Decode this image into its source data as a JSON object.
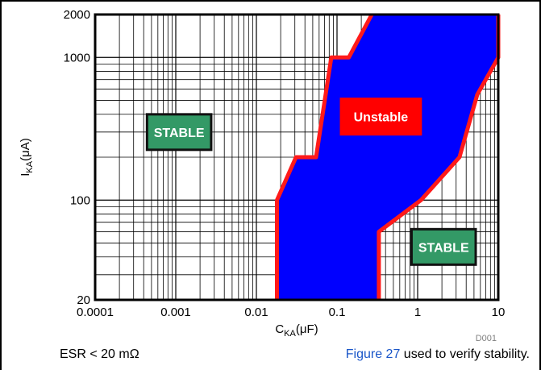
{
  "chart_data": {
    "type": "area",
    "x_scale": "log",
    "y_scale": "log",
    "xlim": [
      0.0001,
      10
    ],
    "ylim": [
      20,
      2000
    ],
    "x_ticks": [
      {
        "value": 0.0001,
        "label": "0.0001"
      },
      {
        "value": 0.001,
        "label": "0.001"
      },
      {
        "value": 0.01,
        "label": "0.01"
      },
      {
        "value": 0.1,
        "label": "0.1"
      },
      {
        "value": 1,
        "label": "1"
      },
      {
        "value": 10,
        "label": "10"
      }
    ],
    "y_ticks": [
      {
        "value": 20,
        "label": "20"
      },
      {
        "value": 100,
        "label": "100"
      },
      {
        "value": 1000,
        "label": "1000"
      },
      {
        "value": 2000,
        "label": "2000"
      }
    ],
    "xlabel": {
      "main": "C",
      "sub": "KA",
      "unit": "(μF)"
    },
    "ylabel": {
      "main": "I",
      "sub": "KA",
      "unit": "(μA)"
    },
    "grid": true,
    "fill_color": "#0000ff",
    "border_color": "#ff1a1a",
    "unstable_region": {
      "left_boundary": [
        {
          "x": 0.018,
          "y": 20
        },
        {
          "x": 0.018,
          "y": 100
        },
        {
          "x": 0.031,
          "y": 200
        },
        {
          "x": 0.055,
          "y": 200
        },
        {
          "x": 0.085,
          "y": 1000
        },
        {
          "x": 0.14,
          "y": 1000
        },
        {
          "x": 0.27,
          "y": 2000
        }
      ],
      "right_boundary": [
        {
          "x": 10,
          "y": 2000
        },
        {
          "x": 10,
          "y": 1000
        },
        {
          "x": 7.0,
          "y": 700
        },
        {
          "x": 5.5,
          "y": 550
        },
        {
          "x": 3.3,
          "y": 200
        },
        {
          "x": 1.1,
          "y": 100
        },
        {
          "x": 0.33,
          "y": 60
        },
        {
          "x": 0.33,
          "y": 20
        }
      ]
    },
    "regions": [
      {
        "label": "STABLE",
        "x": 0.0011,
        "y": 300,
        "bg": "#339966",
        "border": "#111111"
      },
      {
        "label": "Unstable",
        "x": 0.35,
        "y": 385,
        "bg": "#ff0000",
        "border": "#ff0000"
      },
      {
        "label": "STABLE",
        "x": 2.1,
        "y": 47,
        "bg": "#339966",
        "border": "#111111"
      }
    ],
    "figure_id": "D001"
  },
  "footer": {
    "left_text": "ESR < 20 mΩ",
    "link_text": "Figure 27",
    "right_text": " used to verify stability."
  }
}
